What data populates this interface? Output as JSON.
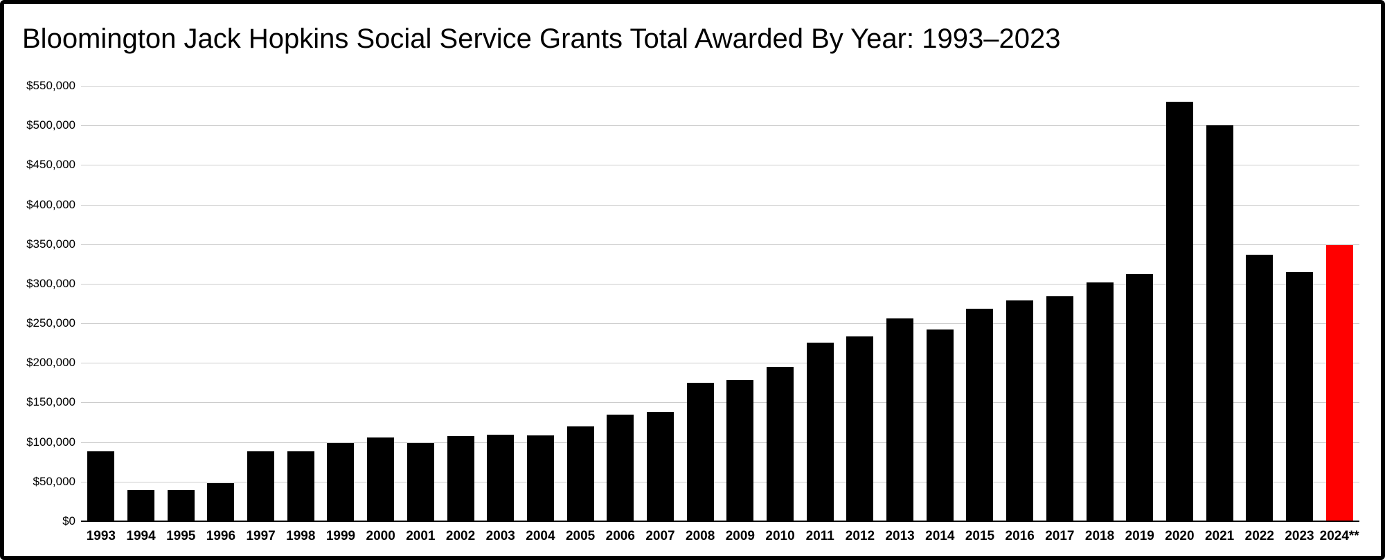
{
  "colors": {
    "bar": "#000000",
    "highlight_bar": "#ff0000",
    "gridline": "#cccccc",
    "axis_line": "#000000",
    "background": "#ffffff",
    "frame_border": "#000000",
    "text": "#000000"
  },
  "chart_data": {
    "type": "bar",
    "title": "Bloomington Jack Hopkins Social Service Grants Total Awarded By Year: 1993–2023",
    "xlabel": "",
    "ylabel": "",
    "grid": true,
    "legend": "none",
    "ylim": [
      0,
      550000
    ],
    "ytick_step": 50000,
    "ytick_values": [
      0,
      50000,
      100000,
      150000,
      200000,
      250000,
      300000,
      350000,
      400000,
      450000,
      500000,
      550000
    ],
    "ytick_labels": [
      "$0",
      "$50,000",
      "$100,000",
      "$150,000",
      "$200,000",
      "$250,000",
      "$300,000",
      "$350,000",
      "$400,000",
      "$450,000",
      "$500,000",
      "$550,000"
    ],
    "categories": [
      "1993",
      "1994",
      "1995",
      "1996",
      "1997",
      "1998",
      "1999",
      "2000",
      "2001",
      "2002",
      "2003",
      "2004",
      "2005",
      "2006",
      "2007",
      "2008",
      "2009",
      "2010",
      "2011",
      "2012",
      "2013",
      "2014",
      "2015",
      "2016",
      "2017",
      "2018",
      "2019",
      "2020",
      "2021",
      "2022",
      "2023",
      "2024**"
    ],
    "values": [
      88500,
      39000,
      39000,
      48500,
      88500,
      88500,
      99000,
      105500,
      98500,
      107500,
      109000,
      108500,
      120000,
      135000,
      138500,
      175000,
      178500,
      195000,
      226000,
      233500,
      256000,
      242500,
      268500,
      279000,
      284500,
      301500,
      312500,
      530000,
      500000,
      336500,
      315000,
      349000
    ],
    "highlight_category": "2024**",
    "x_labels_bold": true
  }
}
